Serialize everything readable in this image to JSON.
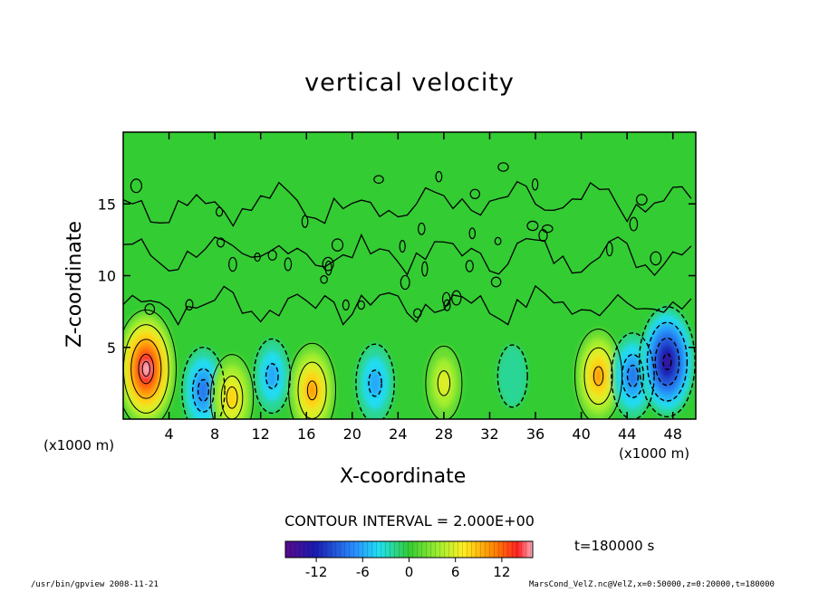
{
  "chart_data": {
    "type": "heatmap",
    "title": "vertical velocity",
    "xlabel": "X-coordinate",
    "ylabel": "Z-coordinate",
    "x_unit": "(x1000 m)",
    "x_unit_right": "(x1000 m)",
    "xlim": [
      0,
      50
    ],
    "ylim": [
      0,
      20
    ],
    "x_ticks": [
      4,
      8,
      12,
      16,
      20,
      24,
      28,
      32,
      36,
      40,
      44,
      48
    ],
    "y_ticks": [
      5,
      10,
      15
    ],
    "contour_interval": "CONTOUR INTERVAL = 2.000E+00",
    "colorbar": {
      "min": -16,
      "max": 16,
      "ticks": [
        -12,
        -6,
        0,
        6,
        12
      ]
    },
    "features": [
      {
        "x": 2,
        "z": 3.5,
        "value": 16,
        "sign": "positive"
      },
      {
        "x": 7,
        "z": 2,
        "value": -8,
        "sign": "negative"
      },
      {
        "x": 9.5,
        "z": 1.5,
        "value": 8,
        "sign": "positive"
      },
      {
        "x": 13,
        "z": 3,
        "value": -5,
        "sign": "negative"
      },
      {
        "x": 16.5,
        "z": 2,
        "value": 10,
        "sign": "positive"
      },
      {
        "x": 22,
        "z": 2.5,
        "value": -6,
        "sign": "negative"
      },
      {
        "x": 28,
        "z": 2.5,
        "value": 5,
        "sign": "positive"
      },
      {
        "x": 34,
        "z": 3,
        "value": -2,
        "sign": "negative"
      },
      {
        "x": 41.5,
        "z": 3,
        "value": 10,
        "sign": "positive"
      },
      {
        "x": 44.5,
        "z": 3,
        "value": -8,
        "sign": "negative"
      },
      {
        "x": 47.5,
        "z": 4,
        "value": -14,
        "sign": "negative"
      }
    ]
  },
  "annotations": {
    "time": "t=180000 s",
    "footer_left": "/usr/bin/gpview   2008-11-21",
    "footer_right": "MarsCond_VelZ.nc@VelZ,x=0:50000,z=0:20000,t=180000"
  },
  "colors": {
    "background_field": "#33cc33",
    "positive_peak": "#ff3333",
    "negative_peak": "#2222aa"
  }
}
